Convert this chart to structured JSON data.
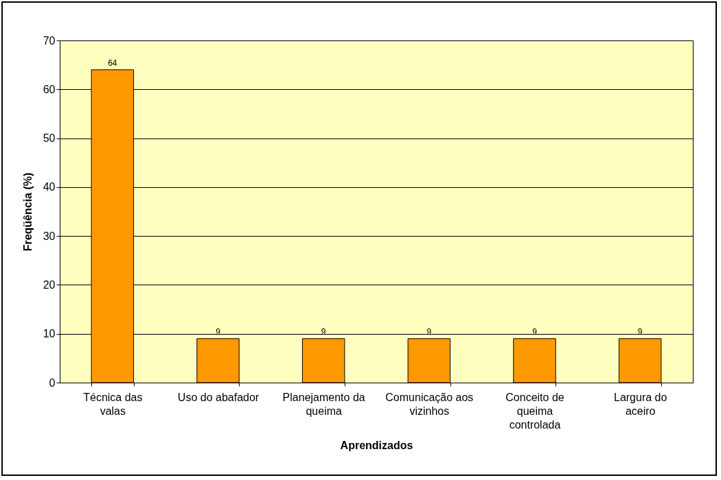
{
  "chart_data": {
    "type": "bar",
    "xlabel": "Aprendizados",
    "ylabel": "Freqüência (%)",
    "categories": [
      "Técnica das valas",
      "Uso do abafador",
      "Planejamento da queima",
      "Comunicação aos vizinhos",
      "Conceito de queima controlada",
      "Largura do aceiro"
    ],
    "values": [
      64,
      9,
      9,
      9,
      9,
      9
    ],
    "color": "#ff9900",
    "ylim": [
      0,
      70
    ],
    "yticks": [
      0,
      10,
      20,
      30,
      40,
      50,
      60,
      70
    ],
    "grid": "y",
    "data_labels": true
  }
}
